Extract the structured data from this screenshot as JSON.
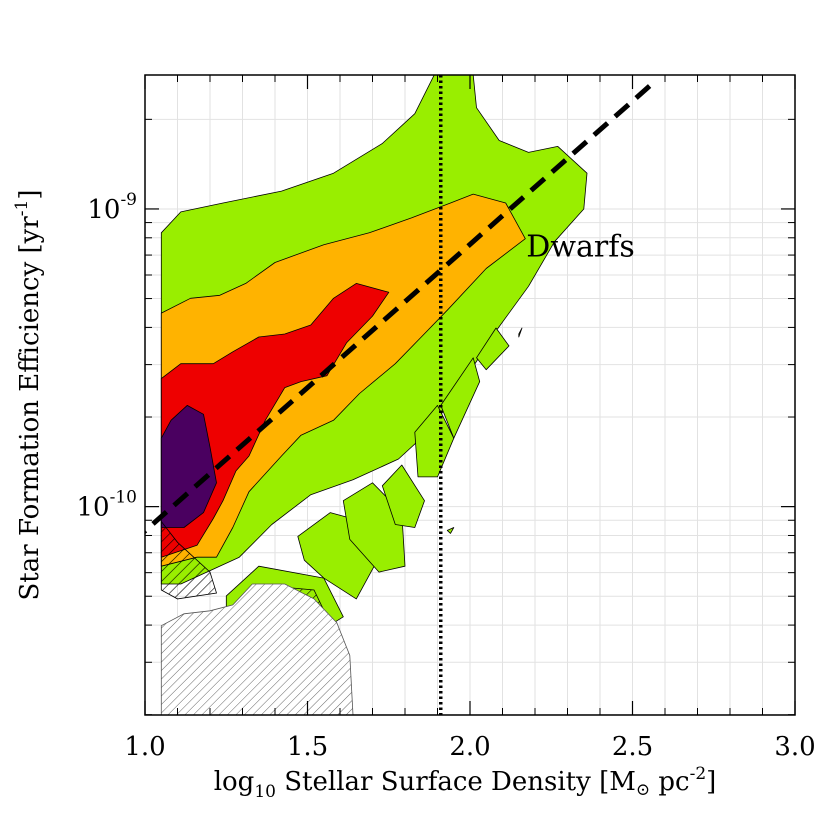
{
  "chart_data": {
    "type": "contour",
    "title": "",
    "xlabel": {
      "prefix": "log",
      "sub": "10",
      "main": " Stellar Surface Density [M",
      "sun": "⊙",
      "unit": " pc",
      "sup": "-2",
      "close": "]"
    },
    "ylabel": {
      "main": "Star Formation Efficiency [yr",
      "sup": "-1",
      "close": "]"
    },
    "xlim": [
      1.0,
      3.0
    ],
    "ylim_log10": [
      -10.7,
      -8.55
    ],
    "xticks": [
      {
        "value": 1.0,
        "label": "1.0"
      },
      {
        "value": 1.5,
        "label": "1.5"
      },
      {
        "value": 2.0,
        "label": "2.0"
      },
      {
        "value": 2.5,
        "label": "2.5"
      },
      {
        "value": 3.0,
        "label": "3.0"
      }
    ],
    "yticks": [
      {
        "value": -10,
        "base": "10",
        "exp": "-10"
      },
      {
        "value": -9,
        "base": "10",
        "exp": "-9"
      }
    ],
    "annotation": {
      "text": "Dwarfs",
      "x": 2.34,
      "y": -9.16
    },
    "fit_line": {
      "style": "dashed",
      "points": [
        [
          0.96,
          -10.12
        ],
        [
          2.56,
          -8.58
        ]
      ]
    },
    "vline": {
      "style": "dotted",
      "x": 1.91
    },
    "colors": {
      "level1": "#99ee00",
      "level2": "#ffb300",
      "level3": "#ee0000",
      "level4": "#4a0060",
      "hatch": "#000000",
      "hatch_grey": "#777777"
    },
    "contours": [
      {
        "level": "level1",
        "polygons": [
          [
            [
              1.05,
              -9.72
            ],
            [
              1.05,
              -9.08
            ],
            [
              1.11,
              -9.01
            ],
            [
              1.24,
              -8.98
            ],
            [
              1.42,
              -8.94
            ],
            [
              1.58,
              -8.88
            ],
            [
              1.73,
              -8.78
            ],
            [
              1.83,
              -8.68
            ],
            [
              1.89,
              -8.55
            ],
            [
              2.01,
              -8.55
            ],
            [
              2.02,
              -8.66
            ],
            [
              2.09,
              -8.77
            ],
            [
              2.18,
              -8.81
            ],
            [
              2.27,
              -8.79
            ],
            [
              2.36,
              -8.88
            ],
            [
              2.35,
              -9.0
            ],
            [
              2.26,
              -9.11
            ],
            [
              2.18,
              -9.26
            ],
            [
              2.08,
              -9.41
            ],
            [
              1.98,
              -9.58
            ],
            [
              1.88,
              -9.74
            ],
            [
              1.78,
              -9.84
            ],
            [
              1.64,
              -9.91
            ],
            [
              1.51,
              -9.96
            ],
            [
              1.39,
              -10.06
            ],
            [
              1.29,
              -10.17
            ],
            [
              1.19,
              -10.22
            ],
            [
              1.11,
              -10.26
            ],
            [
              1.05,
              -10.26
            ]
          ],
          [
            [
              1.25,
              -10.3
            ],
            [
              1.35,
              -10.2
            ],
            [
              1.55,
              -10.24
            ],
            [
              1.61,
              -10.37
            ],
            [
              1.45,
              -10.48
            ],
            [
              1.35,
              -10.54
            ],
            [
              1.25,
              -10.5
            ]
          ],
          [
            [
              1.47,
              -10.1
            ],
            [
              1.57,
              -10.02
            ],
            [
              1.67,
              -10.05
            ],
            [
              1.71,
              -10.19
            ],
            [
              1.65,
              -10.31
            ],
            [
              1.55,
              -10.24
            ],
            [
              1.49,
              -10.18
            ]
          ],
          [
            [
              1.61,
              -9.98
            ],
            [
              1.7,
              -9.92
            ],
            [
              1.79,
              -10.02
            ],
            [
              1.8,
              -10.2
            ],
            [
              1.72,
              -10.22
            ],
            [
              1.63,
              -10.11
            ]
          ],
          [
            [
              1.73,
              -9.93
            ],
            [
              1.79,
              -9.86
            ],
            [
              1.86,
              -9.98
            ],
            [
              1.83,
              -10.07
            ],
            [
              1.77,
              -10.06
            ]
          ],
          [
            [
              1.83,
              -9.75
            ],
            [
              1.9,
              -9.66
            ],
            [
              1.95,
              -9.77
            ],
            [
              1.9,
              -9.9
            ],
            [
              1.84,
              -9.9
            ]
          ],
          [
            [
              1.91,
              -9.66
            ],
            [
              2.01,
              -9.5
            ],
            [
              2.03,
              -9.58
            ],
            [
              1.95,
              -9.77
            ]
          ],
          [
            [
              2.02,
              -9.5
            ],
            [
              2.08,
              -9.4
            ],
            [
              2.12,
              -9.46
            ],
            [
              2.05,
              -9.54
            ]
          ],
          [
            [
              2.15,
              -9.42
            ],
            [
              2.16,
              -9.4
            ],
            [
              2.15,
              -9.43
            ]
          ],
          [
            [
              1.93,
              -10.08
            ],
            [
              1.95,
              -10.07
            ],
            [
              1.94,
              -10.09
            ]
          ]
        ]
      },
      {
        "level": "level2",
        "polygons": [
          [
            [
              1.05,
              -9.35
            ],
            [
              1.14,
              -9.3
            ],
            [
              1.23,
              -9.29
            ],
            [
              1.31,
              -9.25
            ],
            [
              1.4,
              -9.18
            ],
            [
              1.55,
              -9.12
            ],
            [
              1.69,
              -9.08
            ],
            [
              1.82,
              -9.03
            ],
            [
              1.94,
              -8.98
            ],
            [
              2.01,
              -8.95
            ],
            [
              2.11,
              -8.98
            ],
            [
              2.17,
              -9.1
            ],
            [
              2.05,
              -9.2
            ],
            [
              1.93,
              -9.34
            ],
            [
              1.85,
              -9.43
            ],
            [
              1.77,
              -9.52
            ],
            [
              1.66,
              -9.62
            ],
            [
              1.58,
              -9.71
            ],
            [
              1.48,
              -9.76
            ],
            [
              1.42,
              -9.83
            ],
            [
              1.32,
              -9.95
            ],
            [
              1.27,
              -10.07
            ],
            [
              1.22,
              -10.17
            ],
            [
              1.16,
              -10.17
            ],
            [
              1.05,
              -10.2
            ]
          ]
        ]
      },
      {
        "level": "level3",
        "polygons": [
          [
            [
              1.05,
              -9.57
            ],
            [
              1.11,
              -9.52
            ],
            [
              1.21,
              -9.52
            ],
            [
              1.27,
              -9.48
            ],
            [
              1.35,
              -9.43
            ],
            [
              1.43,
              -9.42
            ],
            [
              1.51,
              -9.39
            ],
            [
              1.58,
              -9.3
            ],
            [
              1.65,
              -9.25
            ],
            [
              1.75,
              -9.28
            ],
            [
              1.7,
              -9.36
            ],
            [
              1.62,
              -9.45
            ],
            [
              1.56,
              -9.56
            ],
            [
              1.48,
              -9.58
            ],
            [
              1.43,
              -9.6
            ],
            [
              1.37,
              -9.71
            ],
            [
              1.32,
              -9.83
            ],
            [
              1.28,
              -9.88
            ],
            [
              1.24,
              -9.98
            ],
            [
              1.21,
              -10.04
            ],
            [
              1.16,
              -10.13
            ],
            [
              1.05,
              -10.17
            ]
          ]
        ]
      },
      {
        "level": "level4",
        "polygons": [
          [
            [
              1.05,
              -9.77
            ],
            [
              1.08,
              -9.71
            ],
            [
              1.13,
              -9.66
            ],
            [
              1.18,
              -9.69
            ],
            [
              1.2,
              -9.8
            ],
            [
              1.22,
              -9.92
            ],
            [
              1.18,
              -10.02
            ],
            [
              1.12,
              -10.07
            ],
            [
              1.05,
              -10.07
            ]
          ]
        ]
      }
    ],
    "hatched_regions": [
      {
        "color": "hatch",
        "polygon": [
          [
            1.05,
            -10.05
          ],
          [
            1.1,
            -10.12
          ],
          [
            1.2,
            -10.22
          ],
          [
            1.22,
            -10.29
          ],
          [
            1.1,
            -10.31
          ],
          [
            1.05,
            -10.28
          ]
        ]
      },
      {
        "color": "hatch",
        "polygon": [
          [
            1.27,
            -10.41
          ],
          [
            1.33,
            -10.31
          ],
          [
            1.42,
            -10.27
          ],
          [
            1.52,
            -10.28
          ],
          [
            1.56,
            -10.37
          ],
          [
            1.45,
            -10.44
          ],
          [
            1.36,
            -10.5
          ],
          [
            1.28,
            -10.49
          ]
        ]
      },
      {
        "color": "hatch_grey",
        "polygon": [
          [
            1.05,
            -10.7
          ],
          [
            1.05,
            -10.4
          ],
          [
            1.12,
            -10.36
          ],
          [
            1.2,
            -10.35
          ],
          [
            1.27,
            -10.33
          ],
          [
            1.33,
            -10.26
          ],
          [
            1.43,
            -10.26
          ],
          [
            1.52,
            -10.31
          ],
          [
            1.59,
            -10.39
          ],
          [
            1.63,
            -10.5
          ],
          [
            1.64,
            -10.7
          ]
        ]
      }
    ]
  }
}
